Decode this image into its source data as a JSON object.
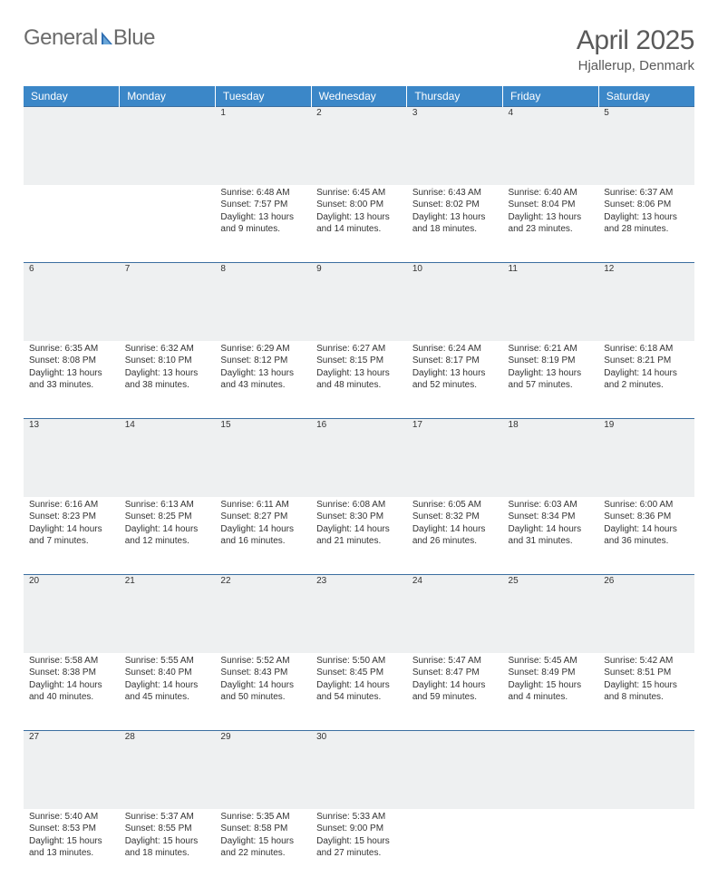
{
  "logo": {
    "part1": "General",
    "part2": "Blue"
  },
  "title": "April 2025",
  "location": "Hjallerup, Denmark",
  "colors": {
    "header_bg": "#3b87c8",
    "header_fg": "#ffffff",
    "row_border": "#3b6ea0",
    "daynum_bg": "#eef0f1",
    "logo_gray": "#6b6b6b",
    "logo_blue": "#2f6fb3"
  },
  "weekdays": [
    "Sunday",
    "Monday",
    "Tuesday",
    "Wednesday",
    "Thursday",
    "Friday",
    "Saturday"
  ],
  "weeks": [
    [
      null,
      null,
      {
        "n": "1",
        "sr": "Sunrise: 6:48 AM",
        "ss": "Sunset: 7:57 PM",
        "d1": "Daylight: 13 hours",
        "d2": "and 9 minutes."
      },
      {
        "n": "2",
        "sr": "Sunrise: 6:45 AM",
        "ss": "Sunset: 8:00 PM",
        "d1": "Daylight: 13 hours",
        "d2": "and 14 minutes."
      },
      {
        "n": "3",
        "sr": "Sunrise: 6:43 AM",
        "ss": "Sunset: 8:02 PM",
        "d1": "Daylight: 13 hours",
        "d2": "and 18 minutes."
      },
      {
        "n": "4",
        "sr": "Sunrise: 6:40 AM",
        "ss": "Sunset: 8:04 PM",
        "d1": "Daylight: 13 hours",
        "d2": "and 23 minutes."
      },
      {
        "n": "5",
        "sr": "Sunrise: 6:37 AM",
        "ss": "Sunset: 8:06 PM",
        "d1": "Daylight: 13 hours",
        "d2": "and 28 minutes."
      }
    ],
    [
      {
        "n": "6",
        "sr": "Sunrise: 6:35 AM",
        "ss": "Sunset: 8:08 PM",
        "d1": "Daylight: 13 hours",
        "d2": "and 33 minutes."
      },
      {
        "n": "7",
        "sr": "Sunrise: 6:32 AM",
        "ss": "Sunset: 8:10 PM",
        "d1": "Daylight: 13 hours",
        "d2": "and 38 minutes."
      },
      {
        "n": "8",
        "sr": "Sunrise: 6:29 AM",
        "ss": "Sunset: 8:12 PM",
        "d1": "Daylight: 13 hours",
        "d2": "and 43 minutes."
      },
      {
        "n": "9",
        "sr": "Sunrise: 6:27 AM",
        "ss": "Sunset: 8:15 PM",
        "d1": "Daylight: 13 hours",
        "d2": "and 48 minutes."
      },
      {
        "n": "10",
        "sr": "Sunrise: 6:24 AM",
        "ss": "Sunset: 8:17 PM",
        "d1": "Daylight: 13 hours",
        "d2": "and 52 minutes."
      },
      {
        "n": "11",
        "sr": "Sunrise: 6:21 AM",
        "ss": "Sunset: 8:19 PM",
        "d1": "Daylight: 13 hours",
        "d2": "and 57 minutes."
      },
      {
        "n": "12",
        "sr": "Sunrise: 6:18 AM",
        "ss": "Sunset: 8:21 PM",
        "d1": "Daylight: 14 hours",
        "d2": "and 2 minutes."
      }
    ],
    [
      {
        "n": "13",
        "sr": "Sunrise: 6:16 AM",
        "ss": "Sunset: 8:23 PM",
        "d1": "Daylight: 14 hours",
        "d2": "and 7 minutes."
      },
      {
        "n": "14",
        "sr": "Sunrise: 6:13 AM",
        "ss": "Sunset: 8:25 PM",
        "d1": "Daylight: 14 hours",
        "d2": "and 12 minutes."
      },
      {
        "n": "15",
        "sr": "Sunrise: 6:11 AM",
        "ss": "Sunset: 8:27 PM",
        "d1": "Daylight: 14 hours",
        "d2": "and 16 minutes."
      },
      {
        "n": "16",
        "sr": "Sunrise: 6:08 AM",
        "ss": "Sunset: 8:30 PM",
        "d1": "Daylight: 14 hours",
        "d2": "and 21 minutes."
      },
      {
        "n": "17",
        "sr": "Sunrise: 6:05 AM",
        "ss": "Sunset: 8:32 PM",
        "d1": "Daylight: 14 hours",
        "d2": "and 26 minutes."
      },
      {
        "n": "18",
        "sr": "Sunrise: 6:03 AM",
        "ss": "Sunset: 8:34 PM",
        "d1": "Daylight: 14 hours",
        "d2": "and 31 minutes."
      },
      {
        "n": "19",
        "sr": "Sunrise: 6:00 AM",
        "ss": "Sunset: 8:36 PM",
        "d1": "Daylight: 14 hours",
        "d2": "and 36 minutes."
      }
    ],
    [
      {
        "n": "20",
        "sr": "Sunrise: 5:58 AM",
        "ss": "Sunset: 8:38 PM",
        "d1": "Daylight: 14 hours",
        "d2": "and 40 minutes."
      },
      {
        "n": "21",
        "sr": "Sunrise: 5:55 AM",
        "ss": "Sunset: 8:40 PM",
        "d1": "Daylight: 14 hours",
        "d2": "and 45 minutes."
      },
      {
        "n": "22",
        "sr": "Sunrise: 5:52 AM",
        "ss": "Sunset: 8:43 PM",
        "d1": "Daylight: 14 hours",
        "d2": "and 50 minutes."
      },
      {
        "n": "23",
        "sr": "Sunrise: 5:50 AM",
        "ss": "Sunset: 8:45 PM",
        "d1": "Daylight: 14 hours",
        "d2": "and 54 minutes."
      },
      {
        "n": "24",
        "sr": "Sunrise: 5:47 AM",
        "ss": "Sunset: 8:47 PM",
        "d1": "Daylight: 14 hours",
        "d2": "and 59 minutes."
      },
      {
        "n": "25",
        "sr": "Sunrise: 5:45 AM",
        "ss": "Sunset: 8:49 PM",
        "d1": "Daylight: 15 hours",
        "d2": "and 4 minutes."
      },
      {
        "n": "26",
        "sr": "Sunrise: 5:42 AM",
        "ss": "Sunset: 8:51 PM",
        "d1": "Daylight: 15 hours",
        "d2": "and 8 minutes."
      }
    ],
    [
      {
        "n": "27",
        "sr": "Sunrise: 5:40 AM",
        "ss": "Sunset: 8:53 PM",
        "d1": "Daylight: 15 hours",
        "d2": "and 13 minutes."
      },
      {
        "n": "28",
        "sr": "Sunrise: 5:37 AM",
        "ss": "Sunset: 8:55 PM",
        "d1": "Daylight: 15 hours",
        "d2": "and 18 minutes."
      },
      {
        "n": "29",
        "sr": "Sunrise: 5:35 AM",
        "ss": "Sunset: 8:58 PM",
        "d1": "Daylight: 15 hours",
        "d2": "and 22 minutes."
      },
      {
        "n": "30",
        "sr": "Sunrise: 5:33 AM",
        "ss": "Sunset: 9:00 PM",
        "d1": "Daylight: 15 hours",
        "d2": "and 27 minutes."
      },
      null,
      null,
      null
    ]
  ]
}
